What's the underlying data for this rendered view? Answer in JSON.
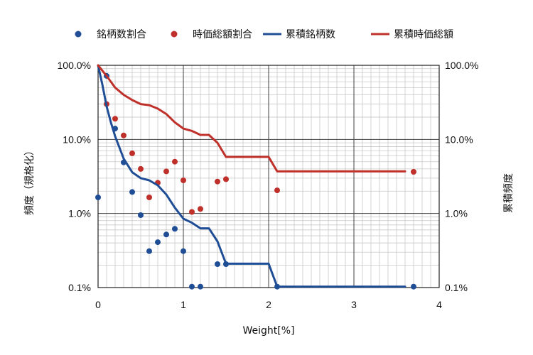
{
  "chart_data": {
    "type": "scatter",
    "xlabel": "Weight[%]",
    "ylabel_left": "頻度（規格化）",
    "ylabel_right": "累積頻度",
    "xlim": [
      0,
      4
    ],
    "ylim": [
      0.001,
      1
    ],
    "yscale": "log",
    "grid": true,
    "legend_position": "top",
    "x_ticks": [
      {
        "value": 0,
        "label": "0"
      },
      {
        "value": 1,
        "label": "1"
      },
      {
        "value": 2,
        "label": "2"
      },
      {
        "value": 3,
        "label": "3"
      },
      {
        "value": 4,
        "label": "4"
      }
    ],
    "y_ticks": [
      {
        "value": 1,
        "label": "100.0%"
      },
      {
        "value": 0.1,
        "label": "10.0%"
      },
      {
        "value": 0.01,
        "label": "1.0%"
      },
      {
        "value": 0.001,
        "label": "0.1%"
      }
    ],
    "series": [
      {
        "name": "銘柄数割合",
        "kind": "scatter",
        "color": "#1f4e96",
        "points": [
          [
            0,
            0.0165
          ],
          [
            0.1,
            0.72
          ],
          [
            0.2,
            0.14
          ],
          [
            0.3,
            0.049
          ],
          [
            0.4,
            0.0195
          ],
          [
            0.5,
            0.0095
          ],
          [
            0.6,
            0.0031
          ],
          [
            0.7,
            0.0041
          ],
          [
            0.8,
            0.0052
          ],
          [
            0.9,
            0.0062
          ],
          [
            1.0,
            0.0031
          ],
          [
            1.1,
            0.00103
          ],
          [
            1.2,
            0.00103
          ],
          [
            1.4,
            0.00207
          ],
          [
            1.5,
            0.00207
          ],
          [
            2.1,
            0.00103
          ],
          [
            3.7,
            0.00103
          ]
        ]
      },
      {
        "name": "時価総額割合",
        "kind": "scatter",
        "color": "#c0302a",
        "points": [
          [
            0.1,
            0.3
          ],
          [
            0.2,
            0.19
          ],
          [
            0.3,
            0.113
          ],
          [
            0.4,
            0.065
          ],
          [
            0.5,
            0.04
          ],
          [
            0.6,
            0.0165
          ],
          [
            0.7,
            0.026
          ],
          [
            0.8,
            0.037
          ],
          [
            0.9,
            0.05
          ],
          [
            1.0,
            0.028
          ],
          [
            1.1,
            0.0105
          ],
          [
            1.2,
            0.0115
          ],
          [
            1.4,
            0.027
          ],
          [
            1.5,
            0.029
          ],
          [
            2.1,
            0.0205
          ],
          [
            3.7,
            0.0365
          ]
        ]
      },
      {
        "name": "累積銘柄数",
        "kind": "line",
        "color": "#1f4e96",
        "points": [
          [
            0,
            1.0
          ],
          [
            0.05,
            0.55
          ],
          [
            0.1,
            0.28
          ],
          [
            0.15,
            0.17
          ],
          [
            0.2,
            0.11
          ],
          [
            0.3,
            0.055
          ],
          [
            0.4,
            0.036
          ],
          [
            0.5,
            0.03
          ],
          [
            0.6,
            0.028
          ],
          [
            0.7,
            0.024
          ],
          [
            0.8,
            0.018
          ],
          [
            0.9,
            0.012
          ],
          [
            1.0,
            0.0085
          ],
          [
            1.1,
            0.0075
          ],
          [
            1.2,
            0.0063
          ],
          [
            1.3,
            0.0063
          ],
          [
            1.4,
            0.0042
          ],
          [
            1.5,
            0.0021
          ],
          [
            2.0,
            0.0021
          ],
          [
            2.1,
            0.00103
          ],
          [
            3.6,
            0.00103
          ]
        ]
      },
      {
        "name": "累積時価総額",
        "kind": "line",
        "color": "#c0302a",
        "points": [
          [
            0,
            1.0
          ],
          [
            0.1,
            0.72
          ],
          [
            0.2,
            0.5
          ],
          [
            0.3,
            0.4
          ],
          [
            0.4,
            0.34
          ],
          [
            0.5,
            0.3
          ],
          [
            0.6,
            0.29
          ],
          [
            0.7,
            0.26
          ],
          [
            0.8,
            0.22
          ],
          [
            0.9,
            0.17
          ],
          [
            1.0,
            0.14
          ],
          [
            1.1,
            0.13
          ],
          [
            1.2,
            0.115
          ],
          [
            1.3,
            0.115
          ],
          [
            1.4,
            0.09
          ],
          [
            1.5,
            0.058
          ],
          [
            2.0,
            0.058
          ],
          [
            2.1,
            0.037
          ],
          [
            3.6,
            0.037
          ]
        ]
      }
    ]
  }
}
